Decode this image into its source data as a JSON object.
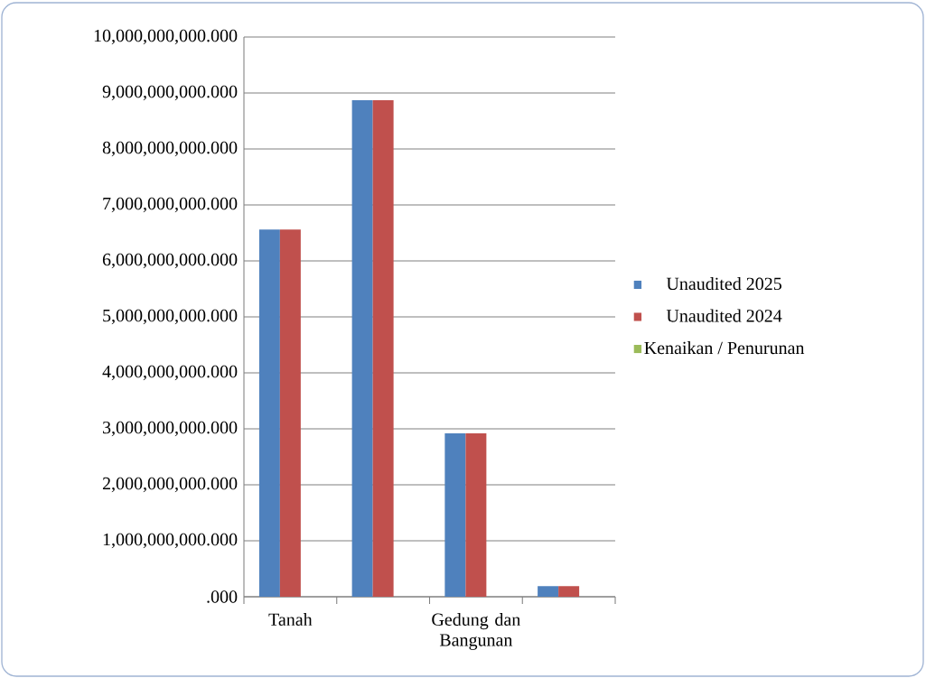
{
  "chart_data": {
    "type": "bar",
    "categories": [
      "Tanah",
      null,
      "Gedung dan Bangunan",
      null
    ],
    "series": [
      {
        "name": "Unaudited 2025",
        "color": "#4f81bd",
        "values": [
          6560000000,
          8870000000,
          2920000000,
          190000000
        ]
      },
      {
        "name": "Unaudited 2024",
        "color": "#c0504d",
        "values": [
          6560000000,
          8870000000,
          2920000000,
          190000000
        ]
      },
      {
        "name": "Kenaikan / Penurunan",
        "color": "#9bbb59",
        "values": [
          0,
          0,
          0,
          0
        ]
      }
    ],
    "ylim": [
      0,
      10000000000
    ],
    "yticks": [
      {
        "value": 0,
        "label": ".000"
      },
      {
        "value": 1000000000,
        "label": "1,000,000,000.000"
      },
      {
        "value": 2000000000,
        "label": "2,000,000,000.000"
      },
      {
        "value": 3000000000,
        "label": "3,000,000,000.000"
      },
      {
        "value": 4000000000,
        "label": "4,000,000,000.000"
      },
      {
        "value": 5000000000,
        "label": "5,000,000,000.000"
      },
      {
        "value": 6000000000,
        "label": "6,000,000,000.000"
      },
      {
        "value": 7000000000,
        "label": "7,000,000,000.000"
      },
      {
        "value": 8000000000,
        "label": "8,000,000,000.000"
      },
      {
        "value": 9000000000,
        "label": "9,000,000,000.000"
      },
      {
        "value": 10000000000,
        "label": "10,000,000,000.000"
      }
    ],
    "grid": "y",
    "legend": "right"
  }
}
